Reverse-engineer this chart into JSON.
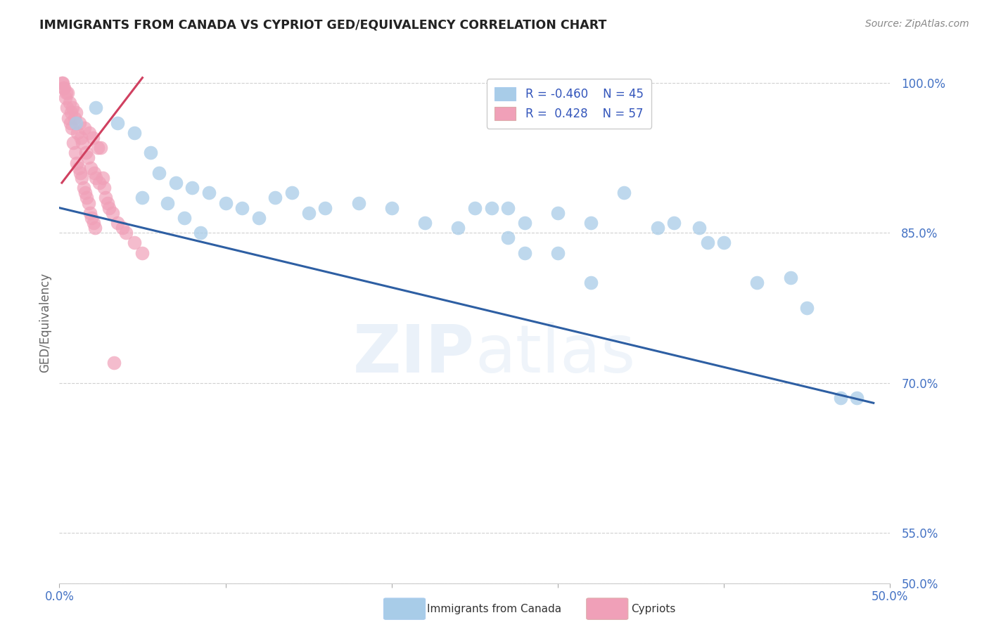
{
  "title": "IMMIGRANTS FROM CANADA VS CYPRIOT GED/EQUIVALENCY CORRELATION CHART",
  "source": "Source: ZipAtlas.com",
  "ylabel": "GED/Equivalency",
  "xlim": [
    0.0,
    50.0
  ],
  "ylim": [
    50.0,
    102.0
  ],
  "xticks": [
    0.0,
    10.0,
    20.0,
    30.0,
    40.0,
    50.0
  ],
  "xtick_labels": [
    "0.0%",
    "",
    "",
    "",
    "",
    "50.0%"
  ],
  "yticks": [
    50.0,
    55.0,
    70.0,
    85.0,
    100.0
  ],
  "ytick_labels": [
    "50.0%",
    "55.0%",
    "70.0%",
    "85.0%",
    "100.0%"
  ],
  "legend_blue_R": "-0.460",
  "legend_blue_N": "45",
  "legend_pink_R": "0.428",
  "legend_pink_N": "57",
  "legend_label_blue": "Immigrants from Canada",
  "legend_label_pink": "Cypriots",
  "watermark_zip": "ZIP",
  "watermark_atlas": "atlas",
  "blue_color": "#a8cce8",
  "blue_line_color": "#2E5FA3",
  "pink_color": "#f0a0b8",
  "pink_line_color": "#d04060",
  "blue_scatter_x": [
    1.0,
    2.2,
    3.5,
    4.5,
    5.5,
    6.0,
    7.0,
    8.0,
    9.0,
    10.0,
    11.0,
    12.0,
    14.0,
    15.0,
    16.0,
    18.0,
    20.0,
    22.0,
    24.0,
    25.0,
    27.0,
    28.0,
    30.0,
    32.0,
    34.0,
    36.0,
    37.0,
    38.5,
    39.0,
    40.0,
    42.0,
    44.0,
    45.0,
    47.0,
    48.0,
    27.0,
    28.0,
    30.0,
    32.0,
    7.5,
    8.5,
    5.0,
    6.5,
    13.0,
    26.0
  ],
  "blue_scatter_y": [
    96.0,
    97.5,
    96.0,
    95.0,
    93.0,
    91.0,
    90.0,
    89.5,
    89.0,
    88.0,
    87.5,
    86.5,
    89.0,
    87.0,
    87.5,
    88.0,
    87.5,
    86.0,
    85.5,
    87.5,
    87.5,
    86.0,
    87.0,
    86.0,
    89.0,
    85.5,
    86.0,
    85.5,
    84.0,
    84.0,
    80.0,
    80.5,
    77.5,
    68.5,
    68.5,
    84.5,
    83.0,
    83.0,
    80.0,
    86.5,
    85.0,
    88.5,
    88.0,
    88.5,
    87.5
  ],
  "pink_scatter_x": [
    0.3,
    0.5,
    0.8,
    1.0,
    1.2,
    1.5,
    1.8,
    2.0,
    2.3,
    2.5,
    0.2,
    0.4,
    0.6,
    0.7,
    0.9,
    1.1,
    1.3,
    1.4,
    1.6,
    1.7,
    1.9,
    2.1,
    2.2,
    2.4,
    2.6,
    2.7,
    2.8,
    2.9,
    3.0,
    3.2,
    3.5,
    3.8,
    4.0,
    4.5,
    5.0,
    0.15,
    0.25,
    0.35,
    0.45,
    0.55,
    0.65,
    0.75,
    0.85,
    0.95,
    1.05,
    1.15,
    1.25,
    1.35,
    1.45,
    1.55,
    1.65,
    1.75,
    1.85,
    1.95,
    2.05,
    2.15,
    3.3
  ],
  "pink_scatter_y": [
    99.5,
    99.0,
    97.5,
    97.0,
    96.0,
    95.5,
    95.0,
    94.5,
    93.5,
    93.5,
    100.0,
    99.0,
    98.0,
    97.0,
    96.5,
    95.0,
    94.5,
    94.0,
    93.0,
    92.5,
    91.5,
    91.0,
    90.5,
    90.0,
    90.5,
    89.5,
    88.5,
    88.0,
    87.5,
    87.0,
    86.0,
    85.5,
    85.0,
    84.0,
    83.0,
    100.0,
    99.5,
    98.5,
    97.5,
    96.5,
    96.0,
    95.5,
    94.0,
    93.0,
    92.0,
    91.5,
    91.0,
    90.5,
    89.5,
    89.0,
    88.5,
    88.0,
    87.0,
    86.5,
    86.0,
    85.5,
    72.0
  ],
  "pink_line_x0": 0.15,
  "pink_line_x1": 5.0,
  "pink_line_y0": 90.0,
  "pink_line_y1": 100.5,
  "blue_line_x0": 0.0,
  "blue_line_x1": 49.0,
  "blue_line_y0": 87.5,
  "blue_line_y1": 68.0,
  "background_color": "#ffffff",
  "grid_color": "#d0d0d0"
}
